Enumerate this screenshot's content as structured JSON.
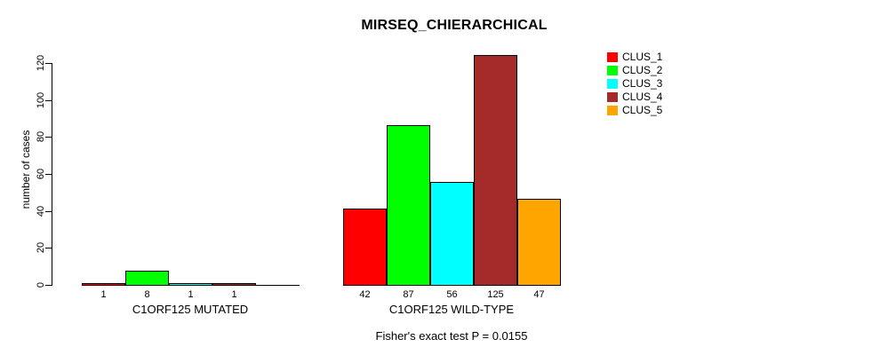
{
  "figure": {
    "title": "MIRSEQ_CHIERARCHICAL",
    "y_axis_title": "number of cases",
    "footer": "Fisher's exact test P = 0.0155"
  },
  "legend": {
    "items": [
      {
        "label": "CLUS_1",
        "color": "#FF0000"
      },
      {
        "label": "CLUS_2",
        "color": "#00FF00"
      },
      {
        "label": "CLUS_3",
        "color": "#00FFFF"
      },
      {
        "label": "CLUS_4",
        "color": "#A52A2A"
      },
      {
        "label": "CLUS_5",
        "color": "#FFA500"
      }
    ]
  },
  "chart_data": {
    "type": "bar",
    "title": "MIRSEQ_CHIERARCHICAL",
    "ylabel": "number of cases",
    "ylim": [
      0,
      125
    ],
    "yticks": [
      0,
      20,
      40,
      60,
      80,
      100,
      120
    ],
    "grid": false,
    "legend_position": "right",
    "clusters": [
      "CLUS_1",
      "CLUS_2",
      "CLUS_3",
      "CLUS_4",
      "CLUS_5"
    ],
    "colors": [
      "#FF0000",
      "#00FF00",
      "#00FFFF",
      "#A52A2A",
      "#FFA500"
    ],
    "groups": [
      {
        "key": "mutated",
        "label": "C1ORF125 MUTATED",
        "values": [
          1,
          8,
          1,
          1,
          0
        ],
        "bar_labels": [
          "1",
          "8",
          "1",
          "1",
          ""
        ]
      },
      {
        "key": "wild-type",
        "label": "C1ORF125 WILD-TYPE",
        "values": [
          42,
          87,
          56,
          125,
          47
        ],
        "bar_labels": [
          "42",
          "87",
          "56",
          "125",
          "47"
        ]
      }
    ],
    "annotation": "Fisher's exact test P = 0.0155"
  }
}
